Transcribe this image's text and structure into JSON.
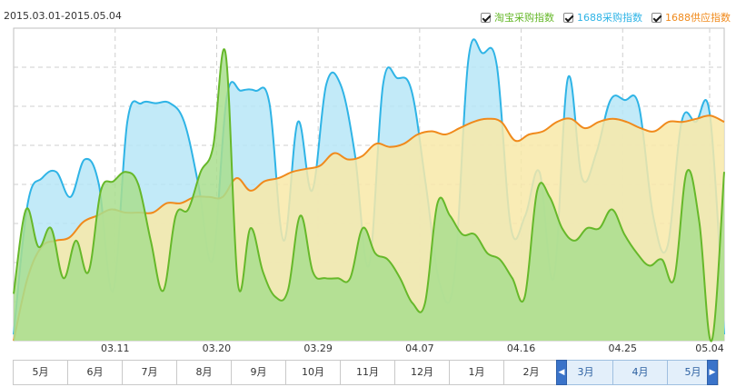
{
  "header": {
    "date_range": "2015.03.01-2015.05.04"
  },
  "legend": [
    {
      "label": "淘宝采购指数",
      "color": "#66b82a",
      "checked": true
    },
    {
      "label": "1688采购指数",
      "color": "#2fb4e6",
      "checked": true
    },
    {
      "label": "1688供应指数",
      "color": "#f08a1c",
      "checked": true
    }
  ],
  "chart_data": {
    "type": "area",
    "title": "",
    "xlabel": "",
    "ylabel": "",
    "grid": true,
    "x_tick_labels": [
      "03.11",
      "03.20",
      "03.29",
      "04.07",
      "04.16",
      "04.25",
      "05.04"
    ],
    "ylim": [
      0,
      100
    ],
    "series": [
      {
        "name": "1688采购指数",
        "color": "#2fb4e6",
        "fill": "#b7e6f7",
        "values": [
          2,
          44,
          52,
          54,
          46,
          58,
          50,
          16,
          70,
          76,
          76,
          76,
          70,
          50,
          26,
          78,
          80,
          80,
          76,
          32,
          70,
          48,
          82,
          82,
          60,
          24,
          82,
          84,
          80,
          50,
          18,
          20,
          90,
          92,
          88,
          36,
          40,
          54,
          20,
          84,
          52,
          60,
          77,
          77,
          75,
          40,
          30,
          70,
          70,
          72,
          2
        ]
      },
      {
        "name": "1688供应指数",
        "color": "#f08a1c",
        "fill": "#f8e9a8",
        "values": [
          0,
          20,
          30,
          32,
          33,
          38,
          40,
          42,
          41,
          41,
          41,
          44,
          44,
          46,
          46,
          46,
          52,
          48,
          51,
          52,
          54,
          55,
          56,
          60,
          58,
          59,
          63,
          62,
          63,
          66,
          67,
          66,
          68,
          70,
          71,
          70,
          64,
          66,
          67,
          70,
          71,
          68,
          70,
          71,
          70,
          68,
          67,
          70,
          70,
          71,
          72,
          70
        ]
      },
      {
        "name": "淘宝采购指数",
        "color": "#66b82a",
        "fill": "#a9de8e",
        "values": [
          15,
          42,
          30,
          36,
          20,
          32,
          22,
          48,
          51,
          54,
          50,
          32,
          16,
          40,
          42,
          54,
          62,
          92,
          18,
          36,
          22,
          14,
          16,
          40,
          22,
          20,
          20,
          20,
          36,
          28,
          26,
          20,
          12,
          12,
          44,
          40,
          34,
          34,
          28,
          26,
          20,
          14,
          48,
          46,
          36,
          32,
          36,
          36,
          42,
          34,
          28,
          24,
          26,
          20,
          54,
          38,
          0,
          54
        ]
      }
    ]
  },
  "range_selector": {
    "months": [
      "5月",
      "6月",
      "7月",
      "8月",
      "9月",
      "10月",
      "11月",
      "12月",
      "1月",
      "2月",
      "3月",
      "4月",
      "5月"
    ],
    "selected_months": [
      "3月",
      "4月",
      "5月"
    ],
    "left_handle": "◀",
    "right_handle": "▶"
  }
}
